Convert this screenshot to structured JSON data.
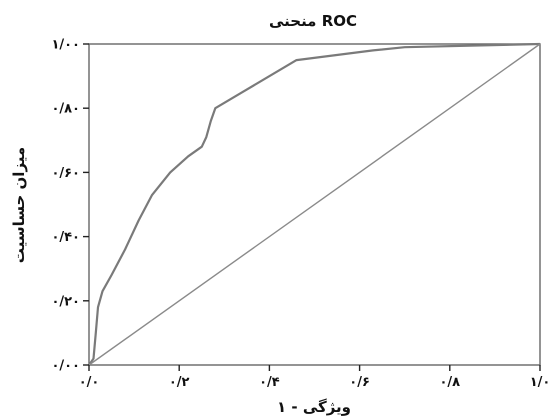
{
  "chart_data": {
    "type": "line",
    "title": "منحنی ROC",
    "xlabel": "۱ - ویژگی",
    "ylabel": "میزان حساسیت",
    "xlim": [
      0,
      1
    ],
    "ylim": [
      0,
      1
    ],
    "x_ticks": [
      0.0,
      0.2,
      0.4,
      0.6,
      0.8,
      1.0
    ],
    "y_ticks": [
      0.0,
      0.2,
      0.4,
      0.6,
      0.8,
      1.0
    ],
    "x_tick_labels": [
      "۰/۰",
      "۰/۲",
      "۰/۴",
      "۰/۶",
      "۰/۸",
      "۱/۰"
    ],
    "y_tick_labels": [
      "۰/۰۰",
      "۰/۲۰",
      "۰/۴۰",
      "۰/۶۰",
      "۰/۸۰",
      "۱/۰۰"
    ],
    "grid": false,
    "series": [
      {
        "points": [
          [
            0.0,
            0.0
          ],
          [
            0.01,
            0.02
          ],
          [
            0.015,
            0.1
          ],
          [
            0.02,
            0.18
          ],
          [
            0.03,
            0.23
          ],
          [
            0.05,
            0.28
          ],
          [
            0.08,
            0.36
          ],
          [
            0.11,
            0.45
          ],
          [
            0.14,
            0.53
          ],
          [
            0.18,
            0.6
          ],
          [
            0.22,
            0.65
          ],
          [
            0.25,
            0.68
          ],
          [
            0.26,
            0.71
          ],
          [
            0.27,
            0.76
          ],
          [
            0.28,
            0.8
          ],
          [
            0.34,
            0.85
          ],
          [
            0.46,
            0.95
          ],
          [
            0.63,
            0.98
          ],
          [
            0.7,
            0.99
          ],
          [
            1.0,
            1.0
          ]
        ]
      },
      {
        "points": [
          [
            0.0,
            0.0
          ],
          [
            1.0,
            1.0
          ]
        ]
      }
    ]
  }
}
